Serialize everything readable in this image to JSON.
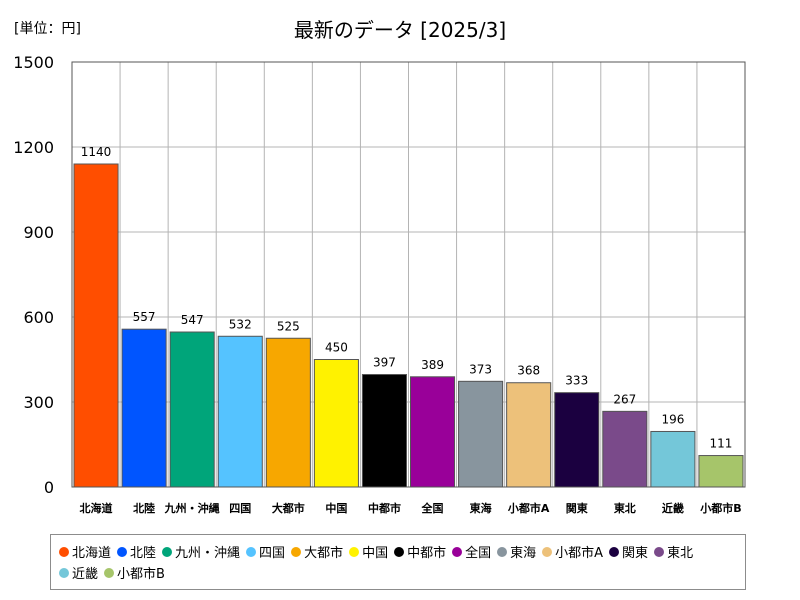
{
  "unit_label": "[単位：円]",
  "chart_data": {
    "type": "bar",
    "title": "最新のデータ [2025/3]",
    "categories": [
      "北海道",
      "北陸",
      "九州・沖縄",
      "四国",
      "大都市",
      "中国",
      "中都市",
      "全国",
      "東海",
      "小都市A",
      "関東",
      "東北",
      "近畿",
      "小都市B"
    ],
    "values": [
      1140,
      557,
      547,
      532,
      525,
      450,
      397,
      389,
      373,
      368,
      333,
      267,
      196,
      111
    ],
    "colors": [
      "#ff4e00",
      "#0055ff",
      "#00a57a",
      "#55c3ff",
      "#f7a700",
      "#fff200",
      "#000000",
      "#990099",
      "#88959e",
      "#edc17a",
      "#1b0040",
      "#7a4a8a",
      "#74c7d9",
      "#a6c56a"
    ],
    "ylim": [
      0,
      1500
    ],
    "yticks": [
      0,
      300,
      600,
      900,
      1200,
      1500
    ],
    "grid": true,
    "legend_position": "bottom"
  }
}
